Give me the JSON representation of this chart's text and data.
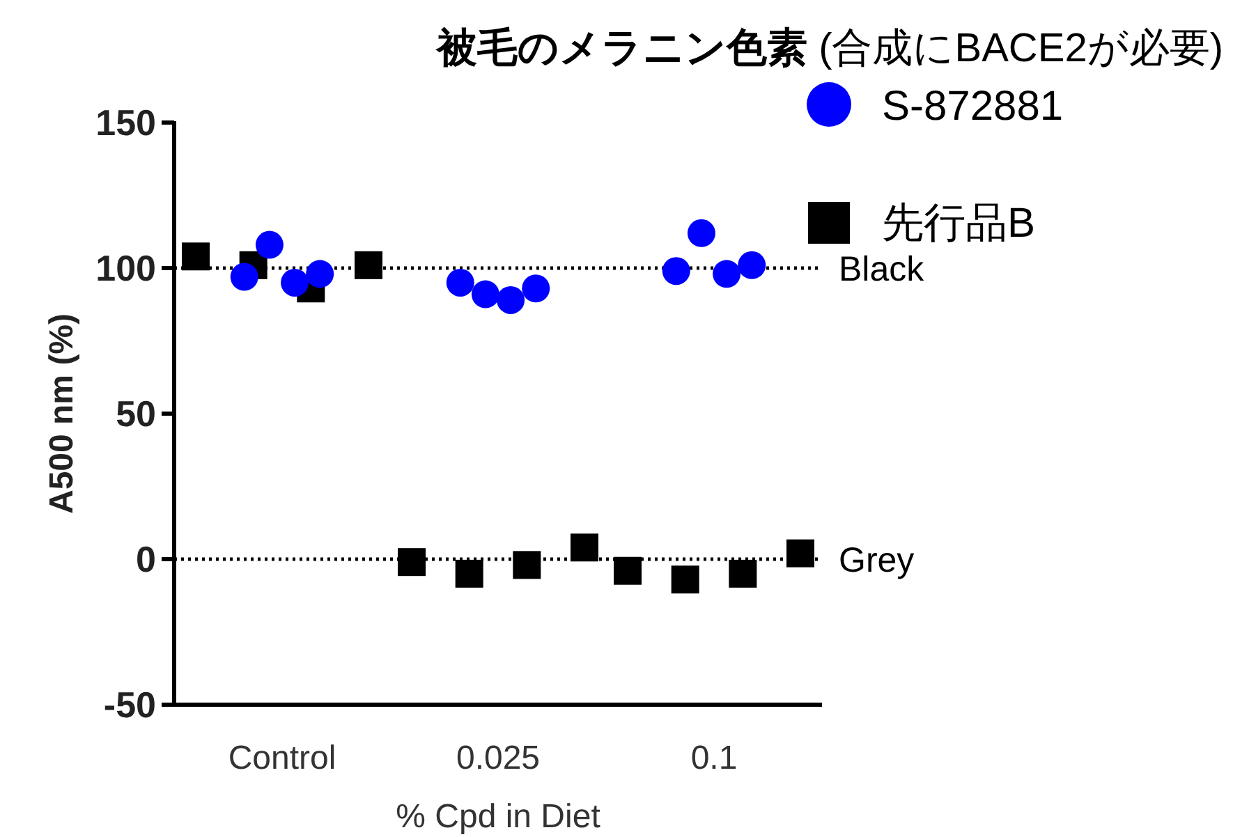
{
  "chart_data": {
    "type": "scatter",
    "title": "被毛のメラニン色素",
    "subtitle": "(合成にBACE2が必要)",
    "xlabel": "% Cpd in Diet",
    "ylabel": "A500 nm (%)",
    "categories": [
      "Control",
      "0.025",
      "0.1"
    ],
    "series": [
      {
        "name": "S-872881",
        "color": "#0000ff",
        "marker": "circle",
        "x": [
          "Control",
          "Control",
          "Control",
          "Control",
          "0.025",
          "0.025",
          "0.025",
          "0.025",
          "0.1",
          "0.1",
          "0.1",
          "0.1"
        ],
        "values": [
          97,
          108,
          95,
          98,
          95,
          91,
          89,
          93,
          99,
          112,
          98,
          101
        ]
      },
      {
        "name": "先行品B",
        "color": "#000000",
        "marker": "square",
        "x": [
          "Control",
          "Control",
          "Control",
          "Control",
          "0.025",
          "0.025",
          "0.025",
          "0.025",
          "0.1",
          "0.1",
          "0.1",
          "0.1"
        ],
        "values": [
          104,
          101,
          93,
          101,
          -1,
          -5,
          -2,
          4,
          -4,
          -7,
          -5,
          2
        ]
      }
    ],
    "ylim": [
      -50,
      150
    ],
    "yticks": [
      -50,
      0,
      50,
      100,
      150
    ],
    "legend": "top right",
    "ref_lines": [
      {
        "axis": "y",
        "value": 100,
        "label": "Black",
        "line_style": "dotted",
        "color": "#000000"
      },
      {
        "axis": "y",
        "value": 0,
        "label": "Grey",
        "line_style": "dotted",
        "color": "#000000"
      }
    ]
  }
}
